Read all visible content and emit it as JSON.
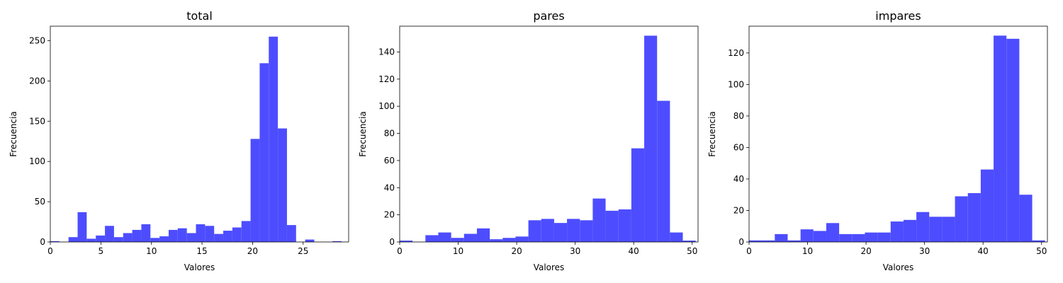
{
  "chart_data": [
    {
      "type": "bar",
      "title": "total",
      "xlabel": "Valores",
      "ylabel": "Frecuencia",
      "xlim": [
        0,
        29.5
      ],
      "ylim": [
        0,
        268
      ],
      "xticks": [
        0,
        5,
        10,
        15,
        20,
        25
      ],
      "yticks": [
        0,
        50,
        100,
        150,
        200,
        250
      ],
      "bin_width": 0.9,
      "bins": [
        {
          "x": 0.0,
          "value": 1
        },
        {
          "x": 0.9,
          "value": 0
        },
        {
          "x": 1.8,
          "value": 6
        },
        {
          "x": 2.7,
          "value": 37
        },
        {
          "x": 3.6,
          "value": 4
        },
        {
          "x": 4.5,
          "value": 8
        },
        {
          "x": 5.4,
          "value": 20
        },
        {
          "x": 6.3,
          "value": 6
        },
        {
          "x": 7.2,
          "value": 11
        },
        {
          "x": 8.1,
          "value": 15
        },
        {
          "x": 9.0,
          "value": 22
        },
        {
          "x": 9.9,
          "value": 5
        },
        {
          "x": 10.8,
          "value": 7
        },
        {
          "x": 11.7,
          "value": 15
        },
        {
          "x": 12.6,
          "value": 17
        },
        {
          "x": 13.5,
          "value": 11
        },
        {
          "x": 14.4,
          "value": 22
        },
        {
          "x": 15.3,
          "value": 20
        },
        {
          "x": 16.2,
          "value": 10
        },
        {
          "x": 17.1,
          "value": 14
        },
        {
          "x": 18.0,
          "value": 18
        },
        {
          "x": 18.9,
          "value": 26
        },
        {
          "x": 19.8,
          "value": 128
        },
        {
          "x": 20.7,
          "value": 222
        },
        {
          "x": 21.6,
          "value": 255
        },
        {
          "x": 22.5,
          "value": 141
        },
        {
          "x": 23.4,
          "value": 21
        },
        {
          "x": 24.3,
          "value": 0
        },
        {
          "x": 25.2,
          "value": 3
        },
        {
          "x": 26.1,
          "value": 0
        },
        {
          "x": 27.0,
          "value": 0
        },
        {
          "x": 27.9,
          "value": 1
        }
      ]
    },
    {
      "type": "bar",
      "title": "pares",
      "xlabel": "Valores",
      "ylabel": "Frecuencia",
      "xlim": [
        0,
        51
      ],
      "ylim": [
        0,
        159
      ],
      "xticks": [
        0,
        10,
        20,
        30,
        40,
        50
      ],
      "yticks": [
        0,
        20,
        40,
        60,
        80,
        100,
        120,
        140
      ],
      "bin_width": 2.2,
      "bins": [
        {
          "x": 0.0,
          "value": 1
        },
        {
          "x": 2.2,
          "value": 0
        },
        {
          "x": 4.4,
          "value": 5
        },
        {
          "x": 6.6,
          "value": 7
        },
        {
          "x": 8.8,
          "value": 3
        },
        {
          "x": 11.0,
          "value": 6
        },
        {
          "x": 13.2,
          "value": 10
        },
        {
          "x": 15.4,
          "value": 2
        },
        {
          "x": 17.6,
          "value": 3
        },
        {
          "x": 19.8,
          "value": 4
        },
        {
          "x": 22.0,
          "value": 16
        },
        {
          "x": 24.2,
          "value": 17
        },
        {
          "x": 26.4,
          "value": 14
        },
        {
          "x": 28.6,
          "value": 17
        },
        {
          "x": 30.8,
          "value": 16
        },
        {
          "x": 33.0,
          "value": 32
        },
        {
          "x": 35.2,
          "value": 23
        },
        {
          "x": 37.4,
          "value": 24
        },
        {
          "x": 39.6,
          "value": 69
        },
        {
          "x": 41.8,
          "value": 152
        },
        {
          "x": 44.0,
          "value": 104
        },
        {
          "x": 46.2,
          "value": 7
        },
        {
          "x": 48.4,
          "value": 1
        }
      ]
    },
    {
      "type": "bar",
      "title": "impares",
      "xlabel": "Valores",
      "ylabel": "Frecuencia",
      "xlim": [
        0,
        51
      ],
      "ylim": [
        0,
        137
      ],
      "xticks": [
        0,
        10,
        20,
        30,
        40,
        50
      ],
      "yticks": [
        0,
        20,
        40,
        60,
        80,
        100,
        120
      ],
      "bin_width": 2.2,
      "bins": [
        {
          "x": 0.0,
          "value": 1
        },
        {
          "x": 2.2,
          "value": 1
        },
        {
          "x": 4.4,
          "value": 5
        },
        {
          "x": 6.6,
          "value": 1
        },
        {
          "x": 8.8,
          "value": 8
        },
        {
          "x": 11.0,
          "value": 7
        },
        {
          "x": 13.2,
          "value": 12
        },
        {
          "x": 15.4,
          "value": 5
        },
        {
          "x": 17.6,
          "value": 5
        },
        {
          "x": 19.8,
          "value": 6
        },
        {
          "x": 22.0,
          "value": 6
        },
        {
          "x": 24.2,
          "value": 13
        },
        {
          "x": 26.4,
          "value": 14
        },
        {
          "x": 28.6,
          "value": 19
        },
        {
          "x": 30.8,
          "value": 16
        },
        {
          "x": 33.0,
          "value": 16
        },
        {
          "x": 35.2,
          "value": 29
        },
        {
          "x": 37.4,
          "value": 31
        },
        {
          "x": 39.6,
          "value": 46
        },
        {
          "x": 41.8,
          "value": 131
        },
        {
          "x": 44.0,
          "value": 129
        },
        {
          "x": 46.2,
          "value": 30
        },
        {
          "x": 48.4,
          "value": 1
        }
      ]
    }
  ],
  "style": {
    "bar_color": "#4d4dff",
    "axis_color": "#000000",
    "background": "#ffffff"
  }
}
